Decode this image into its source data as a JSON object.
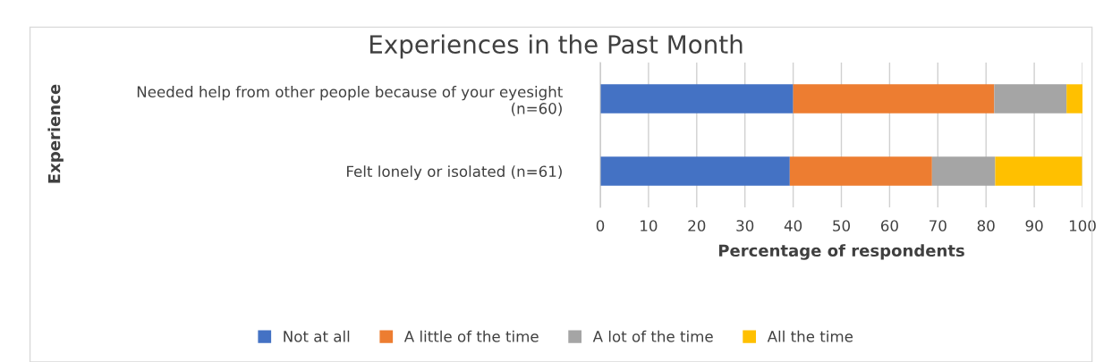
{
  "chart_data": {
    "type": "bar",
    "orientation": "horizontal",
    "stacked": true,
    "title": "Experiences in the Past Month",
    "xlabel": "Percentage of respondents",
    "ylabel": "Experience",
    "categories": [
      "Needed help from other people because of your eyesight\n(n=60)",
      "Felt lonely or isolated (n=61)"
    ],
    "series": [
      {
        "name": "Not at all",
        "color": "#4472c4",
        "values": [
          40.0,
          39.3
        ]
      },
      {
        "name": "A little of the time",
        "color": "#ed7d31",
        "values": [
          41.7,
          29.5
        ]
      },
      {
        "name": "A lot of the time",
        "color": "#a5a5a5",
        "values": [
          15.0,
          13.1
        ]
      },
      {
        "name": "All the time",
        "color": "#ffc000",
        "values": [
          3.3,
          18.0
        ]
      }
    ],
    "xlim": [
      0,
      100
    ],
    "xticks": [
      0,
      10,
      20,
      30,
      40,
      50,
      60,
      70,
      80,
      90,
      100
    ],
    "grid": "x",
    "legend": "bottom"
  }
}
